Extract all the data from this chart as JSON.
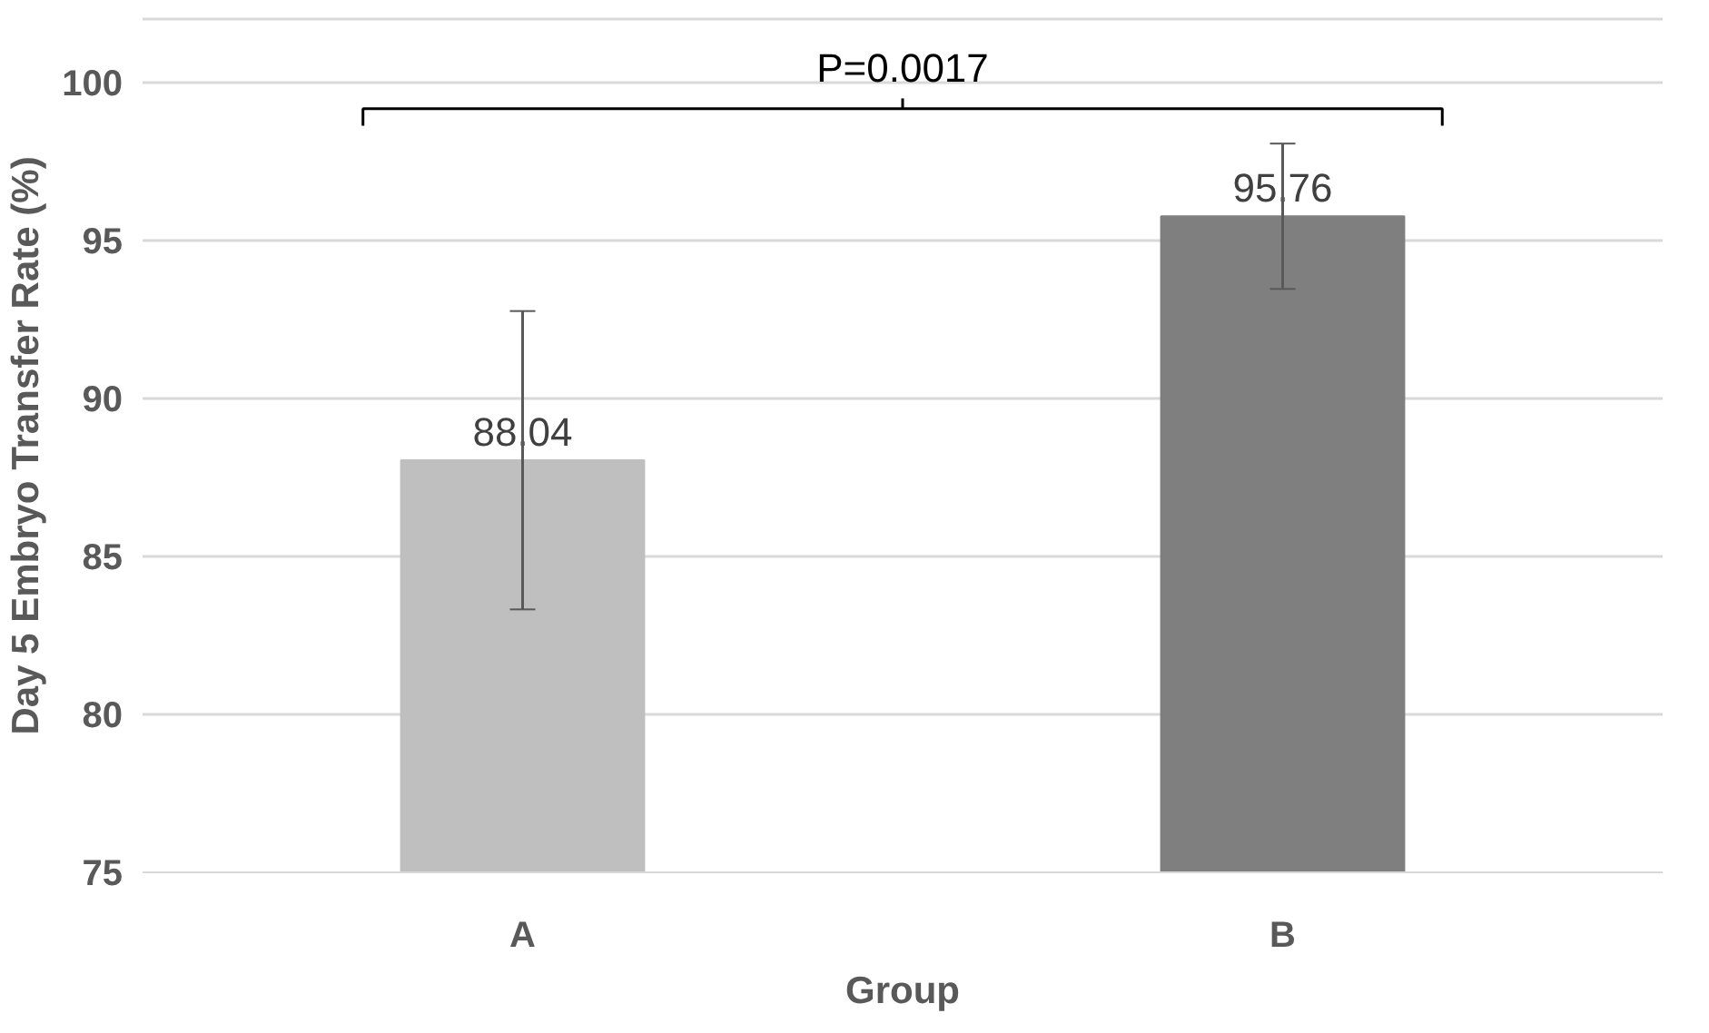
{
  "chart_data": {
    "type": "bar",
    "xlabel": "Group",
    "ylabel": "Day 5 Embryo Transfer Rate (%)",
    "categories": [
      "A",
      "B"
    ],
    "values": [
      88.04,
      95.76
    ],
    "colors": [
      "#bfbfbf",
      "#7f7f7f"
    ],
    "errors": [
      4.72,
      2.3
    ],
    "data_labels": true,
    "ylim": [
      75,
      102
    ],
    "yticks": [
      75,
      80,
      85,
      90,
      95,
      100
    ],
    "grid": "y",
    "annotations": [
      "P=0.0017"
    ]
  }
}
